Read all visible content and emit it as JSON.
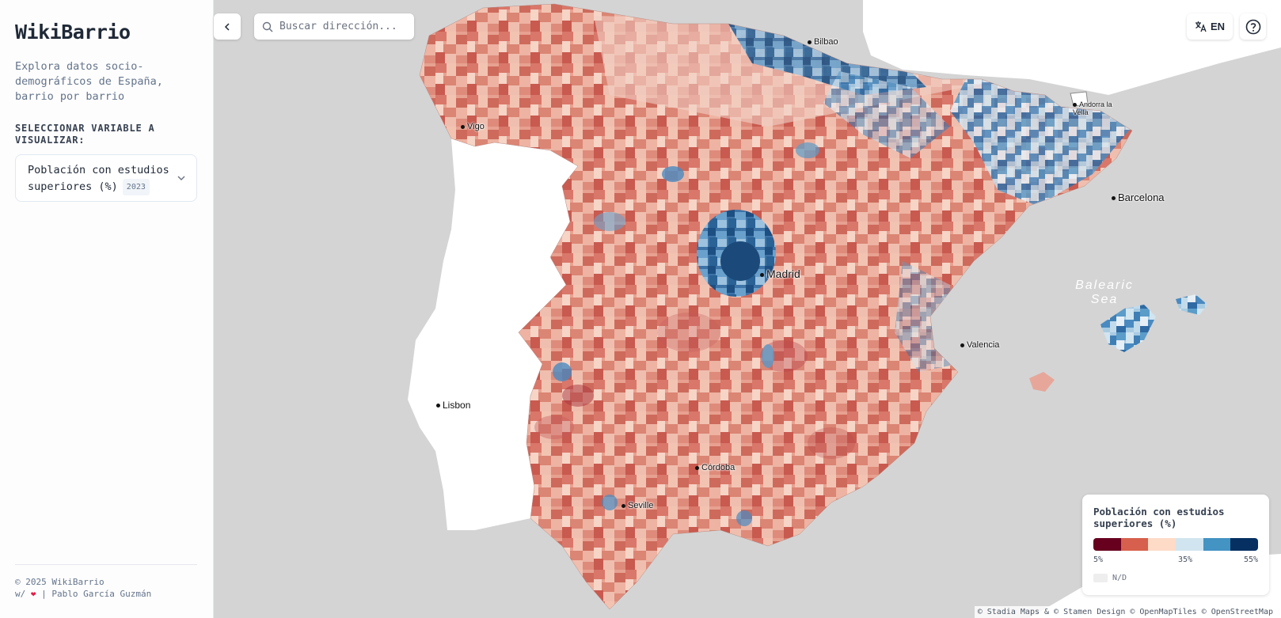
{
  "sidebar": {
    "brand": "WikiBarrio",
    "tagline": "Explora datos socio-demográficos de España, barrio por barrio",
    "section_label": "SELECCIONAR VARIABLE A VISUALIZAR:",
    "variable": {
      "label": "Población con estudios superiores (%)",
      "year": "2023"
    },
    "footer": {
      "copyright": "© 2025 WikiBarrio",
      "credit_prefix": "w/",
      "credit_author": "| Pablo García Guzmán"
    }
  },
  "toolbar": {
    "search_placeholder": "Buscar dirección...",
    "language": "EN",
    "back_icon": "chevron-left-icon",
    "help_icon": "help-circle-icon",
    "translate_icon": "translate-icon"
  },
  "map": {
    "cities": [
      {
        "name": "Bilbao"
      },
      {
        "name": "Vigo"
      },
      {
        "name": "Andorra la Vella"
      },
      {
        "name": "Barcelona"
      },
      {
        "name": "Madrid"
      },
      {
        "name": "Valencia"
      },
      {
        "name": "Lisbon"
      },
      {
        "name": "Córdoba"
      },
      {
        "name": "Seville"
      }
    ],
    "sea_label": "Balearic Sea",
    "attribution": "© Stadia Maps & © Stamen Design © OpenMapTiles © OpenStreetMap"
  },
  "legend": {
    "title": "Población con estudios superiores (%)",
    "colors": [
      "#67001f",
      "#d6604d",
      "#fddbc7",
      "#d1e5f0",
      "#4393c3",
      "#053061"
    ],
    "ticks": [
      "5%",
      "35%",
      "55%"
    ],
    "nd_label": "N/D"
  }
}
